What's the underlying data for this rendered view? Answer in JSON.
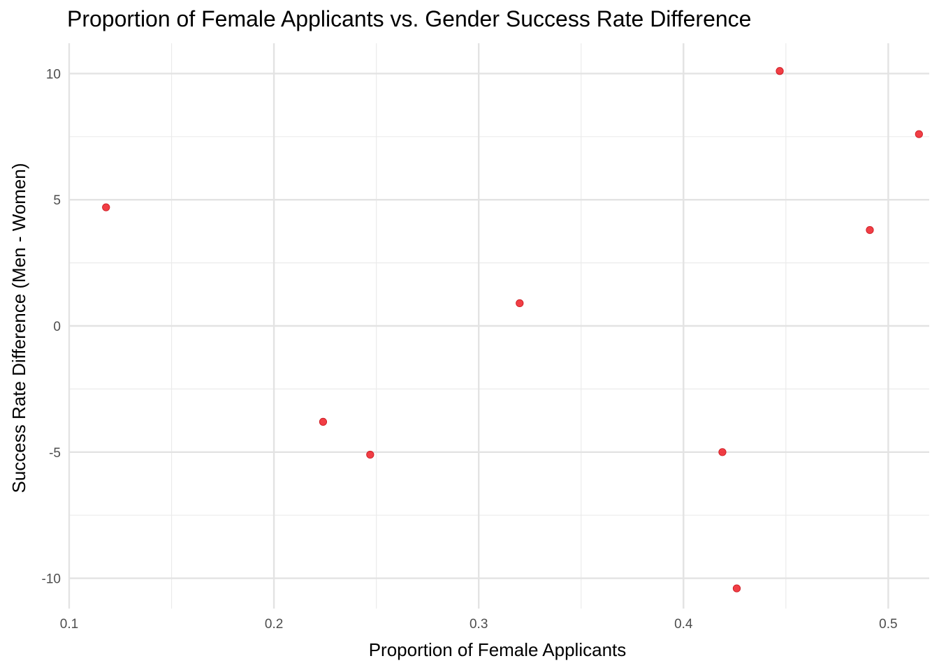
{
  "chart_data": {
    "type": "scatter",
    "title": "Proportion of Female Applicants vs. Gender Success Rate Difference",
    "xlabel": "Proportion of Female Applicants",
    "ylabel": "Success Rate Difference (Men - Women)",
    "xlim": [
      0.1,
      0.52
    ],
    "ylim": [
      -11.2,
      11.2
    ],
    "x_ticks": [
      0.1,
      0.2,
      0.3,
      0.4,
      0.5
    ],
    "x_tick_labels": [
      "0.1",
      "0.2",
      "0.3",
      "0.4",
      "0.5"
    ],
    "x_minor_ticks": [
      0.15,
      0.25,
      0.35,
      0.45
    ],
    "y_ticks": [
      -10,
      -5,
      0,
      5,
      10
    ],
    "y_tick_labels": [
      "-10",
      "-5",
      "0",
      "5",
      "10"
    ],
    "y_minor_ticks": [
      -7.5,
      -2.5,
      2.5,
      7.5
    ],
    "grid": true,
    "point_color": "#ee1c25",
    "points": [
      {
        "x": 0.118,
        "y": 4.7
      },
      {
        "x": 0.224,
        "y": -3.8
      },
      {
        "x": 0.247,
        "y": -5.1
      },
      {
        "x": 0.32,
        "y": 0.9
      },
      {
        "x": 0.419,
        "y": -5.0
      },
      {
        "x": 0.426,
        "y": -10.4
      },
      {
        "x": 0.447,
        "y": 10.1
      },
      {
        "x": 0.491,
        "y": 3.8
      },
      {
        "x": 0.515,
        "y": 7.6
      }
    ]
  }
}
